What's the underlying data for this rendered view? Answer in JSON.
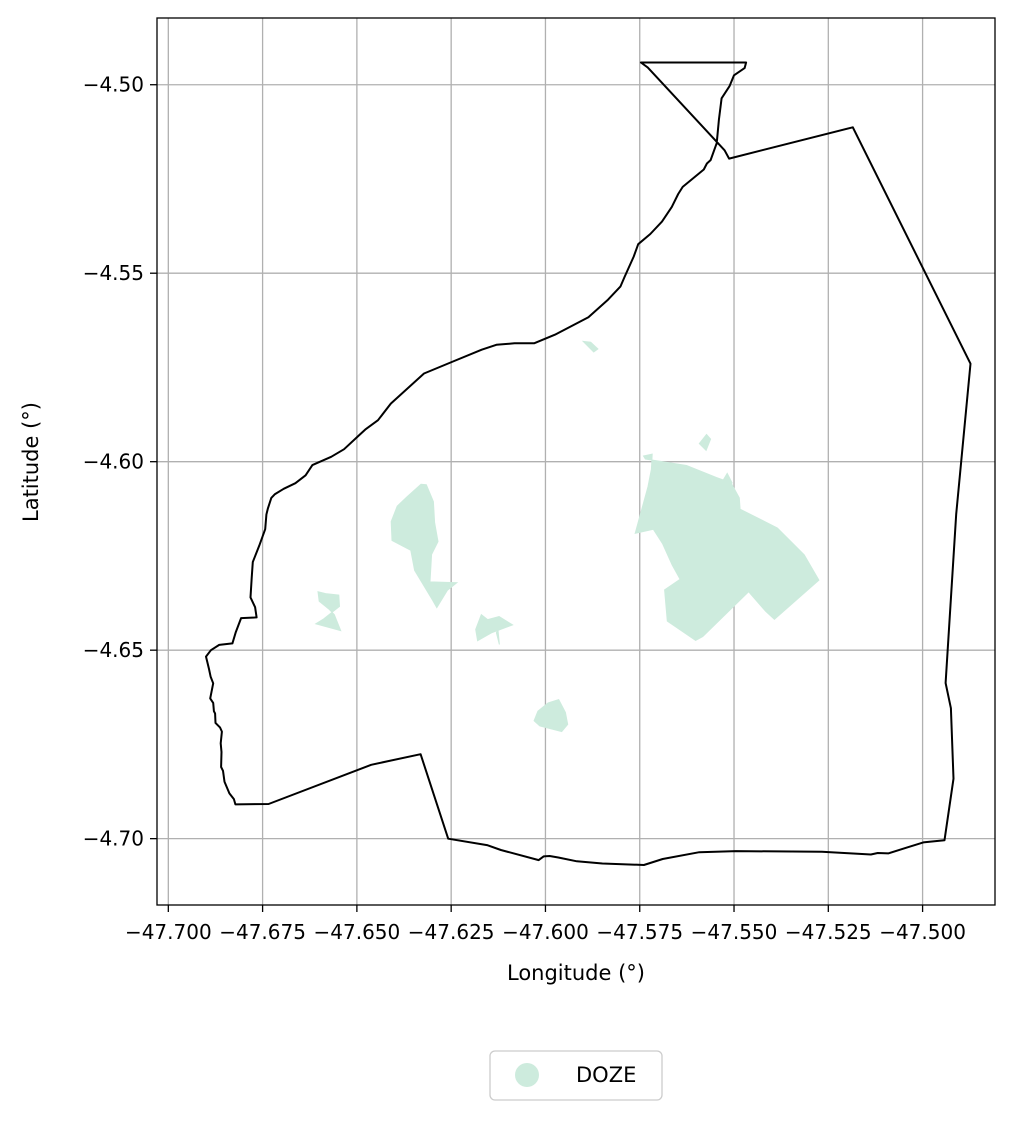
{
  "chart_data": {
    "type": "map",
    "xlabel": "Longitude (°)",
    "ylabel": "Latitude (°)",
    "xlim": [
      -47.703,
      -47.4808
    ],
    "ylim": [
      -4.7176,
      -4.4823
    ],
    "xticks": [
      -47.7,
      -47.675,
      -47.65,
      -47.625,
      -47.6,
      -47.575,
      -47.55,
      -47.525,
      -47.5
    ],
    "xtick_labels": [
      "−47.700",
      "−47.675",
      "−47.650",
      "−47.625",
      "−47.600",
      "−47.575",
      "−47.550",
      "−47.525",
      "−47.500"
    ],
    "yticks": [
      -4.5,
      -4.55,
      -4.6,
      -4.65,
      -4.7
    ],
    "ytick_labels": [
      "−4.50",
      "−4.55",
      "−4.60",
      "−4.65",
      "−4.70"
    ],
    "grid": true,
    "legend": {
      "placement": "bottom-center",
      "entries": [
        {
          "label": "DOZE",
          "color": "#cdebdd"
        }
      ]
    },
    "series": [
      {
        "name": "boundary",
        "kind": "outline",
        "color": "#000000",
        "points": [
          [
            -47.5747,
            -4.4941
          ],
          [
            -47.5729,
            -4.4954
          ],
          [
            -47.5525,
            -4.5174
          ],
          [
            -47.5513,
            -4.5196
          ],
          [
            -47.5185,
            -4.5113
          ],
          [
            -47.4873,
            -4.574
          ],
          [
            -47.4911,
            -4.6139
          ],
          [
            -47.4939,
            -4.6587
          ],
          [
            -47.4925,
            -4.6654
          ],
          [
            -47.4918,
            -4.6841
          ],
          [
            -47.4942,
            -4.7004
          ],
          [
            -47.4998,
            -4.701
          ],
          [
            -47.5043,
            -4.7024
          ],
          [
            -47.5091,
            -4.7039
          ],
          [
            -47.5119,
            -4.7038
          ],
          [
            -47.5137,
            -4.7042
          ],
          [
            -47.5267,
            -4.7035
          ],
          [
            -47.5495,
            -4.7033
          ],
          [
            -47.5592,
            -4.7036
          ],
          [
            -47.5689,
            -4.7054
          ],
          [
            -47.5739,
            -4.707
          ],
          [
            -47.5849,
            -4.7066
          ],
          [
            -47.5917,
            -4.706
          ],
          [
            -47.5966,
            -4.705
          ],
          [
            -47.5989,
            -4.7046
          ],
          [
            -47.6005,
            -4.7047
          ],
          [
            -47.6018,
            -4.7057
          ],
          [
            -47.6118,
            -4.703
          ],
          [
            -47.6155,
            -4.7017
          ],
          [
            -47.6258,
            -4.7
          ],
          [
            -47.6331,
            -4.6776
          ],
          [
            -47.6462,
            -4.6804
          ],
          [
            -47.6734,
            -4.6908
          ],
          [
            -47.6822,
            -4.6909
          ],
          [
            -47.6826,
            -4.6895
          ],
          [
            -47.6838,
            -4.688
          ],
          [
            -47.6851,
            -4.6849
          ],
          [
            -47.6855,
            -4.682
          ],
          [
            -47.686,
            -4.681
          ],
          [
            -47.6859,
            -4.677
          ],
          [
            -47.6861,
            -4.6747
          ],
          [
            -47.6858,
            -4.6716
          ],
          [
            -47.6863,
            -4.6705
          ],
          [
            -47.6875,
            -4.6693
          ],
          [
            -47.6876,
            -4.6668
          ],
          [
            -47.6879,
            -4.6662
          ],
          [
            -47.688,
            -4.6652
          ],
          [
            -47.6881,
            -4.664
          ],
          [
            -47.6889,
            -4.6628
          ],
          [
            -47.6881,
            -4.6588
          ],
          [
            -47.6888,
            -4.657
          ],
          [
            -47.6892,
            -4.655
          ],
          [
            -47.69,
            -4.6517
          ],
          [
            -47.6887,
            -4.65
          ],
          [
            -47.6865,
            -4.6486
          ],
          [
            -47.683,
            -4.6482
          ],
          [
            -47.6821,
            -4.6452
          ],
          [
            -47.6807,
            -4.6415
          ],
          [
            -47.6766,
            -4.6413
          ],
          [
            -47.677,
            -4.6386
          ],
          [
            -47.6782,
            -4.636
          ],
          [
            -47.6779,
            -4.6308
          ],
          [
            -47.6776,
            -4.6266
          ],
          [
            -47.6759,
            -4.6223
          ],
          [
            -47.6743,
            -4.6179
          ],
          [
            -47.674,
            -4.614
          ],
          [
            -47.6736,
            -4.6124
          ],
          [
            -47.6727,
            -4.6096
          ],
          [
            -47.6717,
            -4.6086
          ],
          [
            -47.6694,
            -4.6072
          ],
          [
            -47.6663,
            -4.6057
          ],
          [
            -47.6636,
            -4.6036
          ],
          [
            -47.6618,
            -4.6009
          ],
          [
            -47.6568,
            -4.5987
          ],
          [
            -47.6534,
            -4.5967
          ],
          [
            -47.6493,
            -4.5929
          ],
          [
            -47.6478,
            -4.5915
          ],
          [
            -47.6444,
            -4.589
          ],
          [
            -47.641,
            -4.5846
          ],
          [
            -47.6322,
            -4.5766
          ],
          [
            -47.6242,
            -4.5733
          ],
          [
            -47.6169,
            -4.5703
          ],
          [
            -47.613,
            -4.569
          ],
          [
            -47.6082,
            -4.5686
          ],
          [
            -47.603,
            -4.5686
          ],
          [
            -47.5975,
            -4.5663
          ],
          [
            -47.5886,
            -4.5617
          ],
          [
            -47.5834,
            -4.557
          ],
          [
            -47.5801,
            -4.5535
          ],
          [
            -47.579,
            -4.5509
          ],
          [
            -47.5766,
            -4.5456
          ],
          [
            -47.5754,
            -4.5423
          ],
          [
            -47.5722,
            -4.5396
          ],
          [
            -47.5691,
            -4.5363
          ],
          [
            -47.5665,
            -4.5324
          ],
          [
            -47.5648,
            -4.529
          ],
          [
            -47.5636,
            -4.5271
          ],
          [
            -47.558,
            -4.5225
          ],
          [
            -47.5572,
            -4.5209
          ],
          [
            -47.5562,
            -4.52
          ],
          [
            -47.5546,
            -4.5155
          ],
          [
            -47.554,
            -4.5093
          ],
          [
            -47.5533,
            -4.5036
          ],
          [
            -47.5512,
            -4.5004
          ],
          [
            -47.55,
            -4.4975
          ],
          [
            -47.5472,
            -4.4956
          ],
          [
            -47.5468,
            -4.4941
          ]
        ]
      },
      {
        "name": "DOZE",
        "kind": "fill",
        "color": "#cdebdd",
        "polygons": [
          [
            [
              -47.574,
              -4.5985
            ],
            [
              -47.5717,
              -4.598
            ],
            [
              -47.5719,
              -4.602
            ],
            [
              -47.5728,
              -4.6066
            ],
            [
              -47.5762,
              -4.619
            ],
            [
              -47.5714,
              -4.6179
            ],
            [
              -47.5689,
              -4.6218
            ],
            [
              -47.5664,
              -4.6274
            ],
            [
              -47.5643,
              -4.6312
            ],
            [
              -47.5684,
              -4.634
            ],
            [
              -47.5677,
              -4.6423
            ],
            [
              -47.5602,
              -4.6474
            ],
            [
              -47.5583,
              -4.6464
            ],
            [
              -47.5461,
              -4.6345
            ],
            [
              -47.5457,
              -4.635
            ],
            [
              -47.5416,
              -4.6397
            ],
            [
              -47.5393,
              -4.6418
            ],
            [
              -47.5275,
              -4.6314
            ],
            [
              -47.5314,
              -4.6247
            ],
            [
              -47.5385,
              -4.6176
            ],
            [
              -47.5484,
              -4.6126
            ],
            [
              -47.5486,
              -4.6096
            ],
            [
              -47.5508,
              -4.6056
            ],
            [
              -47.5547,
              -4.6042
            ],
            [
              -47.5626,
              -4.601
            ],
            [
              -47.5735,
              -4.5993
            ]
          ],
          [
            [
              -47.6316,
              -4.6061
            ],
            [
              -47.6297,
              -4.6106
            ],
            [
              -47.6294,
              -4.6161
            ],
            [
              -47.6285,
              -4.6212
            ],
            [
              -47.6302,
              -4.6246
            ],
            [
              -47.6306,
              -4.6319
            ],
            [
              -47.6235,
              -4.6321
            ],
            [
              -47.626,
              -4.6341
            ],
            [
              -47.6288,
              -4.6387
            ],
            [
              -47.6299,
              -4.6368
            ],
            [
              -47.6347,
              -4.6288
            ],
            [
              -47.6357,
              -4.6235
            ],
            [
              -47.6407,
              -4.6209
            ],
            [
              -47.6409,
              -4.6159
            ],
            [
              -47.6393,
              -4.6118
            ],
            [
              -47.6368,
              -4.6094
            ],
            [
              -47.633,
              -4.606
            ]
          ],
          [
            [
              -47.6603,
              -4.6345
            ],
            [
              -47.6583,
              -4.635
            ],
            [
              -47.6548,
              -4.6354
            ],
            [
              -47.6546,
              -4.6384
            ],
            [
              -47.6588,
              -4.6417
            ],
            [
              -47.6609,
              -4.643
            ],
            [
              -47.6543,
              -4.6448
            ],
            [
              -47.656,
              -4.6406
            ],
            [
              -47.6573,
              -4.6392
            ],
            [
              -47.66,
              -4.637
            ]
          ],
          [
            [
              -47.617,
              -4.6406
            ],
            [
              -47.6153,
              -4.6419
            ],
            [
              -47.6123,
              -4.6411
            ],
            [
              -47.6087,
              -4.6433
            ],
            [
              -47.6143,
              -4.6454
            ],
            [
              -47.618,
              -4.6475
            ],
            [
              -47.6185,
              -4.6445
            ]
          ],
          [
            [
              -47.5965,
              -4.6631
            ],
            [
              -47.5947,
              -4.6665
            ],
            [
              -47.5941,
              -4.6697
            ],
            [
              -47.5957,
              -4.6716
            ],
            [
              -47.6015,
              -4.6701
            ],
            [
              -47.603,
              -4.6687
            ],
            [
              -47.602,
              -4.6662
            ],
            [
              -47.5993,
              -4.664
            ]
          ],
          [
            [
              -47.59,
              -4.5681
            ],
            [
              -47.588,
              -4.5683
            ],
            [
              -47.5861,
              -4.5701
            ],
            [
              -47.5872,
              -4.5709
            ]
          ],
          [
            [
              -47.5573,
              -4.5928
            ],
            [
              -47.5562,
              -4.594
            ],
            [
              -47.5574,
              -4.597
            ],
            [
              -47.5592,
              -4.5952
            ]
          ],
          [
            [
              -47.5518,
              -4.6031
            ],
            [
              -47.5505,
              -4.6056
            ],
            [
              -47.5513,
              -4.6068
            ],
            [
              -47.553,
              -4.6051
            ]
          ],
          [
            [
              -47.5622,
              -4.6363
            ],
            [
              -47.5608,
              -4.6376
            ],
            [
              -47.563,
              -4.6377
            ]
          ],
          [
            [
              -47.5705,
              -4.6014
            ],
            [
              -47.57,
              -4.6043
            ],
            [
              -47.5711,
              -4.6033
            ]
          ],
          [
            [
              -47.5732,
              -4.6106
            ],
            [
              -47.5721,
              -4.6091
            ],
            [
              -47.5726,
              -4.6123
            ]
          ],
          [
            [
              -47.6126,
              -4.6444
            ],
            [
              -47.6122,
              -4.6485
            ],
            [
              -47.613,
              -4.6454
            ]
          ]
        ]
      }
    ]
  }
}
